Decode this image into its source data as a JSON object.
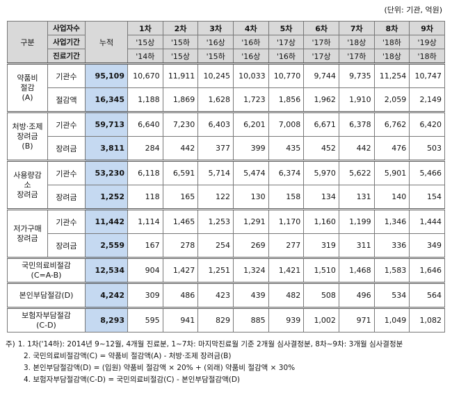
{
  "unit": "(단위: 기관, 억원)",
  "table": {
    "header": {
      "category": "구분",
      "row_labels": [
        "사업자수",
        "사업기간",
        "진료기간"
      ],
      "cumulative": "누적",
      "rounds": [
        {
          "name": "1차",
          "period": "'15상",
          "care": "'14하"
        },
        {
          "name": "2차",
          "period": "'15하",
          "care": "'15상"
        },
        {
          "name": "3차",
          "period": "'16상",
          "care": "'15하"
        },
        {
          "name": "4차",
          "period": "'16하",
          "care": "'16상"
        },
        {
          "name": "5차",
          "period": "'17상",
          "care": "'16하"
        },
        {
          "name": "6차",
          "period": "'17하",
          "care": "'17상"
        },
        {
          "name": "7차",
          "period": "'18상",
          "care": "'17하"
        },
        {
          "name": "8차",
          "period": "'18하",
          "care": "'18상"
        },
        {
          "name": "9차",
          "period": "'19상",
          "care": "'18하"
        }
      ]
    },
    "groups": [
      {
        "label": [
          "약품비",
          "절감",
          "(A)"
        ],
        "rows": [
          {
            "label": "기관수",
            "total": "95,109",
            "values": [
              "10,670",
              "11,911",
              "10,245",
              "10,033",
              "10,770",
              "9,744",
              "9,735",
              "11,254",
              "10,747"
            ]
          },
          {
            "label": "절감액",
            "total": "16,345",
            "values": [
              "1,188",
              "1,869",
              "1,628",
              "1,723",
              "1,856",
              "1,962",
              "1,910",
              "2,059",
              "2,149"
            ]
          }
        ]
      },
      {
        "label": [
          "처방·조제",
          "장려금",
          "(B)"
        ],
        "rows": [
          {
            "label": "기관수",
            "total": "59,713",
            "values": [
              "6,640",
              "7,230",
              "6,403",
              "6,201",
              "7,008",
              "6,671",
              "6,378",
              "6,762",
              "6,420"
            ]
          },
          {
            "label": "장려금",
            "total": "3,811",
            "values": [
              "284",
              "442",
              "377",
              "399",
              "435",
              "452",
              "442",
              "476",
              "503"
            ]
          }
        ]
      },
      {
        "label": [
          "사용량감",
          "소",
          "장려금"
        ],
        "rows": [
          {
            "label": "기관수",
            "total": "53,230",
            "values": [
              "6,118",
              "6,591",
              "5,714",
              "5,474",
              "6,374",
              "5,970",
              "5,622",
              "5,901",
              "5,466"
            ]
          },
          {
            "label": "장려금",
            "total": "1,252",
            "values": [
              "118",
              "165",
              "122",
              "130",
              "158",
              "134",
              "131",
              "140",
              "154"
            ]
          }
        ]
      },
      {
        "label": [
          "저가구매",
          "장려금"
        ],
        "rows": [
          {
            "label": "기관수",
            "total": "11,442",
            "values": [
              "1,114",
              "1,465",
              "1,253",
              "1,291",
              "1,170",
              "1,160",
              "1,199",
              "1,346",
              "1,444"
            ]
          },
          {
            "label": "장려금",
            "total": "2,559",
            "values": [
              "167",
              "278",
              "254",
              "269",
              "277",
              "319",
              "311",
              "336",
              "349"
            ]
          }
        ]
      },
      {
        "label": [
          "국민의료비절감",
          "(C=A-B)"
        ],
        "rows": [
          {
            "total": "12,534",
            "values": [
              "904",
              "1,427",
              "1,251",
              "1,324",
              "1,421",
              "1,510",
              "1,468",
              "1,583",
              "1,646"
            ]
          }
        ]
      },
      {
        "label": [
          "본인부담절감(D)"
        ],
        "rows": [
          {
            "total": "4,242",
            "values": [
              "309",
              "486",
              "423",
              "439",
              "482",
              "508",
              "496",
              "534",
              "564"
            ]
          }
        ]
      },
      {
        "label": [
          "보험자부담절감",
          "(C-D)"
        ],
        "rows": [
          {
            "total": "8,293",
            "values": [
              "595",
              "941",
              "829",
              "885",
              "939",
              "1,002",
              "971",
              "1,049",
              "1,082"
            ]
          }
        ]
      }
    ]
  },
  "notes": {
    "prefix": "주)",
    "items": [
      "1. 1차('14하): 2014년 9~12월, 4개월 진료분, 1~7차: 마지막진료월 기준 2개월 심사결정분, 8차~9차: 3개월 심사결정분",
      "2. 국민의료비절감액(C) = 약품비 절감액(A) - 처방·조제 장려금(B)",
      "3. 본인부담절감액(D) = (입원) 약품비 절감액 × 20% + (외래) 약품비 절감액 × 30%",
      "4. 보험자부담절감액(C-D) = 국민의료비절감(C) - 본인부담절감액(D)"
    ]
  }
}
